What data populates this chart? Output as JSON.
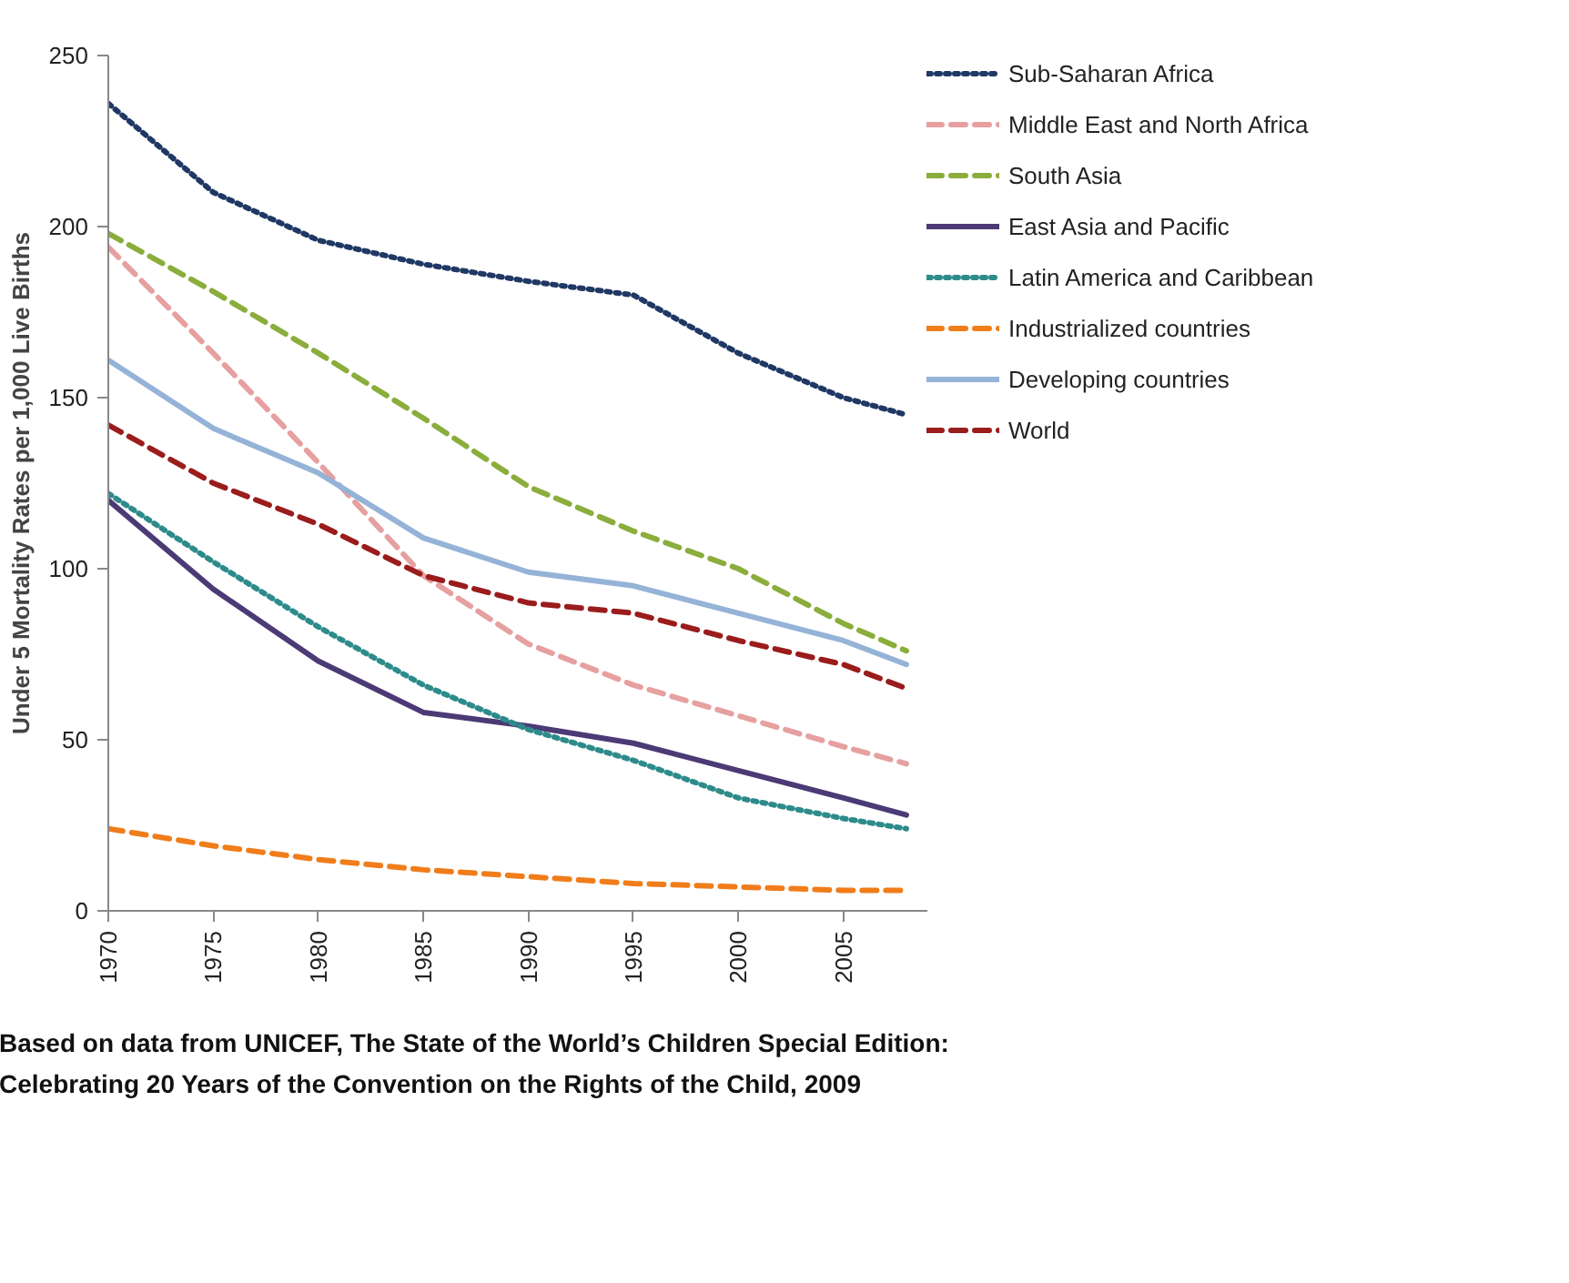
{
  "chart_data": {
    "type": "line",
    "ylabel": "Under 5 Mortality Rates per 1,000 Live Births",
    "x": [
      1970,
      1975,
      1980,
      1985,
      1990,
      1995,
      2000,
      2005,
      2008
    ],
    "xlim": [
      1970,
      2009
    ],
    "xticks": [
      {
        "value": 1970,
        "label": "1970"
      },
      {
        "value": 1975,
        "label": "1975"
      },
      {
        "value": 1980,
        "label": "1980"
      },
      {
        "value": 1985,
        "label": "1985"
      },
      {
        "value": 1990,
        "label": "1990"
      },
      {
        "value": 1995,
        "label": "1995"
      },
      {
        "value": 2000,
        "label": "2000"
      },
      {
        "value": 2005,
        "label": "2005"
      }
    ],
    "ylim": [
      0,
      250
    ],
    "yticks": [
      0,
      50,
      100,
      150,
      200,
      250
    ],
    "grid": false,
    "legend": "right",
    "marker": "none",
    "series": [
      {
        "name": "Sub-Saharan Africa",
        "color": "#1f3864",
        "line_style": "dotted",
        "values": [
          236,
          210,
          196,
          189,
          184,
          180,
          163,
          150,
          145
        ]
      },
      {
        "name": "Middle East and North Africa",
        "color": "#e6a0a0",
        "line_style": "dashed",
        "values": [
          194,
          163,
          131,
          98,
          78,
          66,
          57,
          48,
          43
        ]
      },
      {
        "name": "South Asia",
        "color": "#8aad3c",
        "line_style": "dashed",
        "values": [
          198,
          181,
          163,
          144,
          124,
          111,
          100,
          84,
          76
        ]
      },
      {
        "name": "East Asia and Pacific",
        "color": "#4b3a75",
        "line_style": "solid",
        "values": [
          120,
          94,
          73,
          58,
          54,
          49,
          41,
          33,
          28
        ]
      },
      {
        "name": "Latin America and Caribbean",
        "color": "#2e8b8b",
        "line_style": "dotted",
        "values": [
          122,
          102,
          83,
          66,
          53,
          44,
          33,
          27,
          24
        ]
      },
      {
        "name": "Industrialized countries",
        "color": "#f07d1a",
        "line_style": "dashed",
        "values": [
          24,
          19,
          15,
          12,
          10,
          8,
          7,
          6,
          6
        ]
      },
      {
        "name": "Developing countries",
        "color": "#95b3d7",
        "line_style": "solid",
        "values": [
          161,
          141,
          128,
          109,
          99,
          95,
          87,
          79,
          72
        ]
      },
      {
        "name": "World",
        "color": "#9b1c1c",
        "line_style": "dashed",
        "values": [
          142,
          125,
          113,
          98,
          90,
          87,
          79,
          72,
          65
        ]
      }
    ],
    "annotations": [
      "Based on data from UNICEF, The State of the World’s Children Special Edition:\nCelebrating 20 Years of the Convention on the Rights of the Child, 2009"
    ]
  }
}
